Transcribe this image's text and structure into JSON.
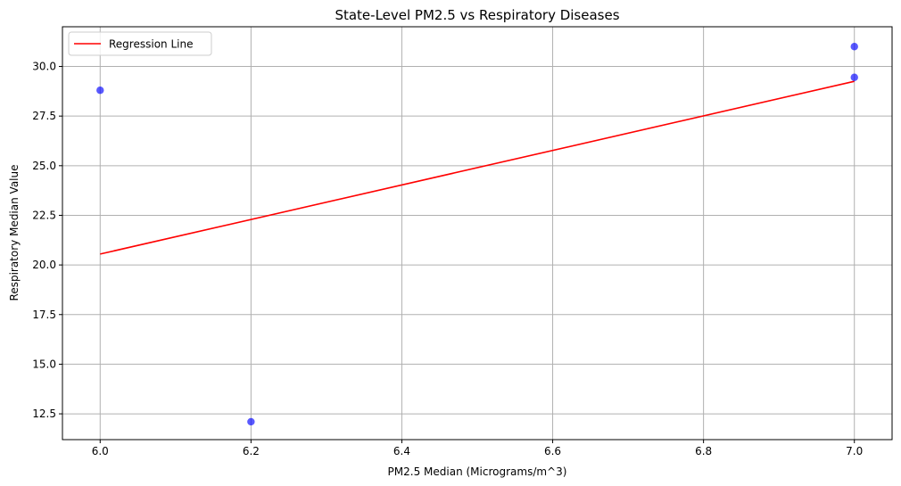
{
  "chart_data": {
    "type": "scatter",
    "title": "State-Level PM2.5 vs Respiratory Diseases",
    "xlabel": "PM2.5 Median (Micrograms/m^3)",
    "ylabel": "Respiratory Median Value",
    "xlim": [
      5.95,
      7.05
    ],
    "ylim": [
      11.2,
      32.0
    ],
    "xticks": [
      "6.0",
      "6.2",
      "6.4",
      "6.6",
      "6.8",
      "7.0"
    ],
    "yticks": [
      "12.5",
      "15.0",
      "17.5",
      "20.0",
      "22.5",
      "25.0",
      "27.5",
      "30.0"
    ],
    "grid": true,
    "legend_position": "upper-left",
    "series": [
      {
        "kind": "scatter",
        "points": [
          {
            "x": 6.0,
            "y": 28.8
          },
          {
            "x": 6.2,
            "y": 12.1
          },
          {
            "x": 7.0,
            "y": 31.0
          },
          {
            "x": 7.0,
            "y": 29.45
          }
        ],
        "color": "#0000ff",
        "alpha": 0.65
      },
      {
        "name": "Regression Line",
        "kind": "line",
        "points": [
          {
            "x": 6.0,
            "y": 20.55
          },
          {
            "x": 7.0,
            "y": 29.25
          }
        ],
        "color": "#ff0000"
      }
    ]
  }
}
